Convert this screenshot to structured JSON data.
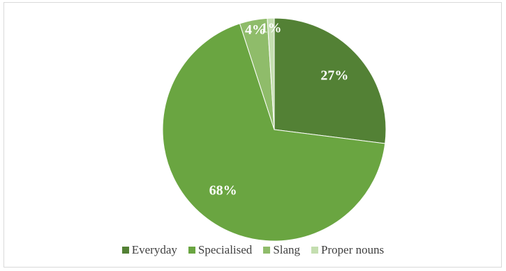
{
  "chart_data": {
    "type": "pie",
    "title": "",
    "legend_position": "bottom",
    "slices": [
      {
        "name": "Everyday",
        "value": 27,
        "label": "27%",
        "color": "#538135"
      },
      {
        "name": "Specialised",
        "value": 68,
        "label": "68%",
        "color": "#6aa541"
      },
      {
        "name": "Slang",
        "value": 4,
        "label": "4%",
        "color": "#8fbc6a"
      },
      {
        "name": "Proper nouns",
        "value": 1,
        "label": "1%",
        "color": "#c4deb0"
      }
    ]
  }
}
